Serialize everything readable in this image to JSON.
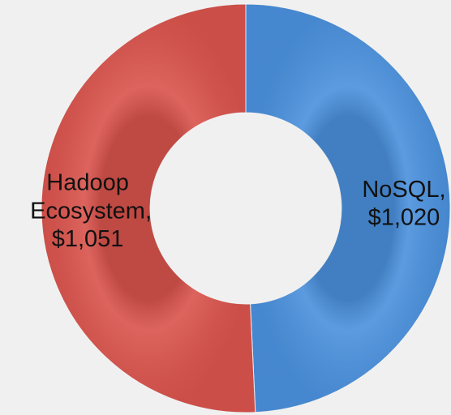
{
  "chart_data": {
    "type": "donut",
    "categories": [
      "NoSQL,",
      "Hadoop Ecosystem,"
    ],
    "values": [
      1020,
      1051
    ],
    "value_labels": [
      "$1,020",
      "$1,051"
    ],
    "colors": [
      "#4a90dc",
      "#d9534c"
    ]
  }
}
